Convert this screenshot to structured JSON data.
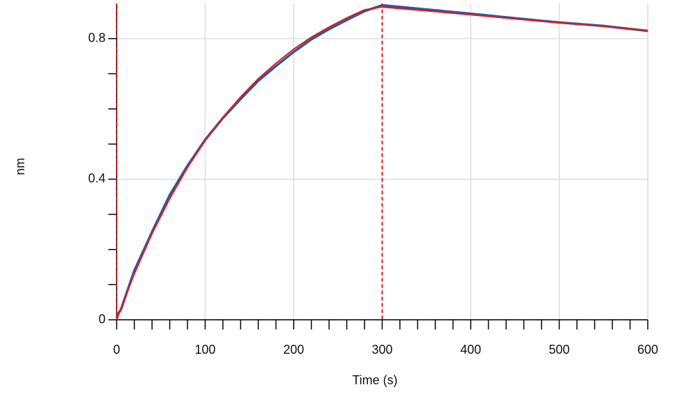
{
  "chart_data": {
    "type": "line",
    "x_label": "Time (s)",
    "y_label": "nm",
    "xlim": [
      0,
      600
    ],
    "ylim": [
      0,
      0.9
    ],
    "xticks": [
      0,
      100,
      200,
      300,
      400,
      500,
      600
    ],
    "yticks": [
      0,
      0.4,
      0.8
    ],
    "xminorticks": [
      20,
      40,
      60,
      80,
      120,
      140,
      160,
      180,
      220,
      240,
      260,
      280,
      320,
      340,
      360,
      380,
      420,
      440,
      460,
      480,
      520,
      540,
      560,
      580
    ],
    "yminorticks": [
      0.1,
      0.2,
      0.3,
      0.5,
      0.6,
      0.7
    ],
    "grid": true,
    "vlines": [
      0,
      300
    ],
    "vline_color": "#e8141b",
    "series": [
      {
        "color": "#2a5a9c",
        "x": [
          0,
          5,
          20,
          40,
          60,
          80,
          100,
          120,
          140,
          160,
          180,
          200,
          220,
          240,
          260,
          280,
          300,
          350,
          400,
          450,
          500,
          550,
          600
        ],
        "values": [
          0.01,
          0.03,
          0.14,
          0.25,
          0.355,
          0.438,
          0.512,
          0.574,
          0.628,
          0.68,
          0.722,
          0.762,
          0.798,
          0.827,
          0.853,
          0.878,
          0.895,
          0.883,
          0.871,
          0.858,
          0.846,
          0.836,
          0.822
        ]
      },
      {
        "color": "#e8141b",
        "x": [
          0,
          20,
          40,
          60,
          80,
          100,
          120,
          140,
          160,
          180,
          200,
          220,
          240,
          260,
          280,
          300,
          350,
          400,
          450,
          500,
          550,
          600
        ],
        "values": [
          0,
          0.131,
          0.245,
          0.345,
          0.433,
          0.51,
          0.576,
          0.634,
          0.686,
          0.73,
          0.77,
          0.804,
          0.833,
          0.859,
          0.882,
          0.89,
          0.879,
          0.868,
          0.856,
          0.845,
          0.835,
          0.823
        ]
      }
    ]
  }
}
